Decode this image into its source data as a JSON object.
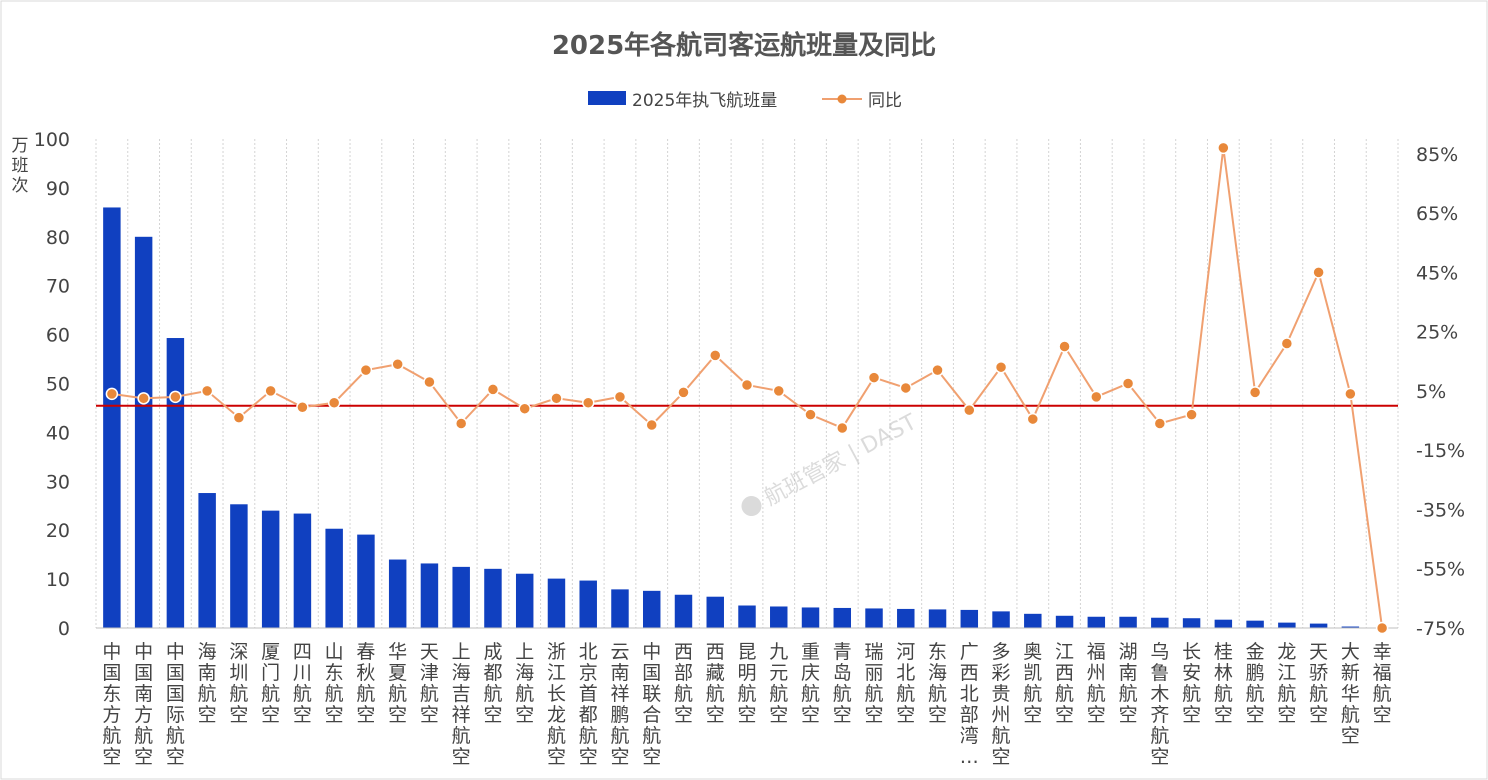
{
  "chart_data": {
    "type": "bar",
    "title": "2025年各航司客运航班量及同比",
    "categories": [
      "中国东方航空",
      "中国南方航空",
      "中国国际航空",
      "海南航空",
      "深圳航空",
      "厦门航空",
      "四川航空",
      "山东航空",
      "春秋航空",
      "华夏航空",
      "天津航空",
      "上海吉祥航空",
      "成都航空",
      "上海航空",
      "浙江长龙航空",
      "北京首都航空",
      "云南祥鹏航空",
      "中国联合航空",
      "西部航空",
      "西藏航空",
      "昆明航空",
      "九元航空",
      "重庆航空",
      "青岛航空",
      "瑞丽航空",
      "河北航空",
      "东海航空",
      "广西北部湾…",
      "多彩贵州航空",
      "奥凯航空",
      "江西航空",
      "福州航空",
      "湖南航空",
      "乌鲁木齐航空",
      "长安航空",
      "桂林航空",
      "金鹏航空",
      "龙江航空",
      "天骄航空",
      "大新华航空",
      "幸福航空"
    ],
    "series": [
      {
        "name": "2025年执飞航班量",
        "type": "bar",
        "axis": "left",
        "color": "#1040C0",
        "values": [
          86,
          80,
          59.3,
          27.6,
          25.3,
          24,
          23.4,
          20.3,
          19.1,
          14,
          13.2,
          12.5,
          12.1,
          11.1,
          10.1,
          9.7,
          7.9,
          7.6,
          6.8,
          6.4,
          4.6,
          4.4,
          4.2,
          4.1,
          4,
          3.9,
          3.8,
          3.7,
          3.4,
          2.9,
          2.5,
          2.3,
          2.3,
          2.1,
          2,
          1.7,
          1.5,
          1.1,
          0.9,
          0.3,
          0
        ]
      },
      {
        "name": "同比",
        "type": "line",
        "axis": "right",
        "color": "#F0A070",
        "marker_color": "#E8883A",
        "values": [
          4,
          2.5,
          3,
          5,
          -4,
          5,
          -0.5,
          1,
          12,
          14,
          8,
          -6,
          5.5,
          -1,
          2.5,
          1,
          3,
          -6.5,
          4.5,
          17,
          7,
          5,
          -3,
          -7.5,
          9.5,
          6,
          12,
          -1.5,
          13,
          -4.5,
          20,
          3,
          7.5,
          -6,
          -3,
          87,
          4.5,
          21,
          45,
          4,
          -75
        ]
      }
    ],
    "left_axis": {
      "label": "万班次",
      "ylim": [
        0,
        100
      ],
      "ticks": [
        "0",
        "10",
        "20",
        "30",
        "40",
        "50",
        "60",
        "70",
        "80",
        "90",
        "100"
      ]
    },
    "right_axis": {
      "ylim": [
        -75,
        90
      ],
      "ticks": [
        "85%",
        "65%",
        "45%",
        "25%",
        "5%",
        "-15%",
        "-35%",
        "-55%",
        "-75%"
      ],
      "tick_values": [
        85,
        65,
        45,
        25,
        5,
        -15,
        -35,
        -55,
        -75
      ]
    },
    "reference_line": {
      "axis": "right",
      "value": 0,
      "color": "#CC0000"
    },
    "legend": {
      "position": "top",
      "entries": [
        "2025年执飞航班量",
        "同比"
      ]
    },
    "grid": {
      "vertical": true,
      "horizontal": false
    },
    "watermark": "航班管家 | DAST"
  }
}
